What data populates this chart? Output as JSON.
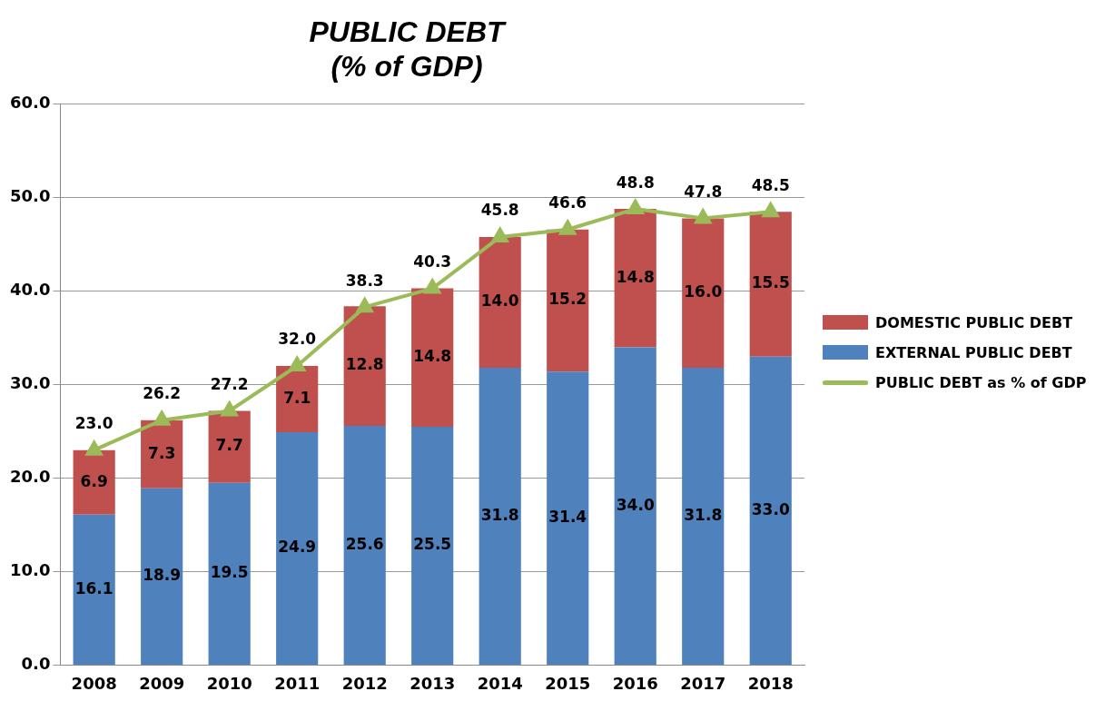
{
  "chart_data": {
    "type": "bar",
    "title": "PUBLIC DEBT\n(% of GDP)",
    "categories": [
      "2008",
      "2009",
      "2010",
      "2011",
      "2012",
      "2013",
      "2014",
      "2015",
      "2016",
      "2017",
      "2018"
    ],
    "series": [
      {
        "name": "EXTERNAL PUBLIC DEBT",
        "color": "#4f81bd",
        "values": [
          16.1,
          18.9,
          19.5,
          24.9,
          25.6,
          25.5,
          31.8,
          31.4,
          34.0,
          31.8,
          33.0
        ],
        "value_labels": [
          "16.1",
          "18.9",
          "19.5",
          "24.9",
          "25.6",
          "25.5",
          "31.8",
          "31.4",
          "34.0",
          "31.8",
          "33.0"
        ]
      },
      {
        "name": "DOMESTIC PUBLIC DEBT",
        "color": "#c0504d",
        "values": [
          6.9,
          7.3,
          7.7,
          7.1,
          12.8,
          14.8,
          14.0,
          15.2,
          14.8,
          16.0,
          15.5
        ],
        "value_labels": [
          "6.9",
          "7.3",
          "7.7",
          "7.1",
          "12.8",
          "14.8",
          "14.0",
          "15.2",
          "14.8",
          "16.0",
          "15.5"
        ]
      },
      {
        "name": "PUBLIC DEBT as % of GDP",
        "color": "#9bbb59",
        "type": "line",
        "marker": "triangle",
        "values": [
          23.0,
          26.2,
          27.2,
          32.0,
          38.3,
          40.3,
          45.8,
          46.6,
          48.8,
          47.8,
          48.5
        ],
        "value_labels": [
          "23.0",
          "26.2",
          "27.2",
          "32.0",
          "38.3",
          "40.3",
          "45.8",
          "46.6",
          "48.8",
          "47.8",
          "48.5"
        ]
      }
    ],
    "stacked": true,
    "ylim": [
      0,
      60
    ],
    "yticks": [
      {
        "value": 0,
        "label": "0.0"
      },
      {
        "value": 10,
        "label": "10.0"
      },
      {
        "value": 20,
        "label": "20.0"
      },
      {
        "value": 30,
        "label": "30.0"
      },
      {
        "value": 40,
        "label": "40.0"
      },
      {
        "value": 50,
        "label": "50.0"
      },
      {
        "value": 60,
        "label": "60.0"
      }
    ],
    "grid": "y",
    "legend": "right"
  }
}
